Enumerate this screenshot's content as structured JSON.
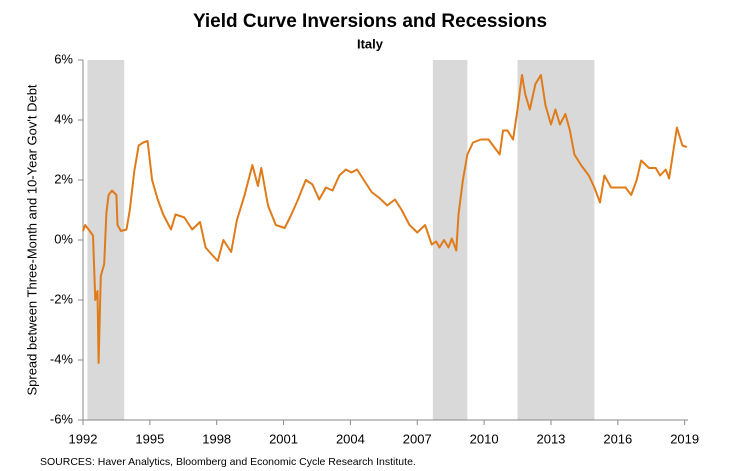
{
  "chart_data": {
    "type": "line",
    "title": "Yield Curve Inversions and Recessions",
    "subtitle": "Italy",
    "y_label": "Spread between Three-Month and 10-Year Gov't Debt",
    "source": "SOURCES: Haver Analytics, Bloomberg and Economic Cycle Research Institute.",
    "color": "#e07b1a",
    "recession_color": "#d9d9d9",
    "recessions": [
      [
        1992.2,
        1993.85
      ],
      [
        2007.7,
        2009.25
      ],
      [
        2011.5,
        2014.95
      ]
    ],
    "x": [
      1992.0,
      1992.1,
      1992.3,
      1992.45,
      1992.55,
      1992.65,
      1992.7,
      1992.8,
      1992.95,
      1993.05,
      1993.15,
      1993.3,
      1993.5,
      1993.55,
      1993.7,
      1993.95,
      1994.1,
      1994.3,
      1994.5,
      1994.7,
      1994.9,
      1995.1,
      1995.35,
      1995.6,
      1995.95,
      1996.15,
      1996.55,
      1996.9,
      1997.25,
      1997.5,
      1997.8,
      1998.05,
      1998.3,
      1998.65,
      1998.9,
      1999.25,
      1999.6,
      1999.85,
      2000.0,
      2000.3,
      2000.65,
      2001.05,
      2001.35,
      2001.65,
      2002.0,
      2002.3,
      2002.6,
      2002.9,
      2003.2,
      2003.5,
      2003.8,
      2004.05,
      2004.3,
      2004.6,
      2004.95,
      2005.3,
      2005.65,
      2006.0,
      2006.3,
      2006.65,
      2007.0,
      2007.35,
      2007.65,
      2007.85,
      2008.0,
      2008.2,
      2008.4,
      2008.55,
      2008.75,
      2008.85,
      2009.05,
      2009.25,
      2009.5,
      2009.85,
      2010.2,
      2010.5,
      2010.7,
      2010.85,
      2011.05,
      2011.3,
      2011.5,
      2011.7,
      2011.85,
      2012.05,
      2012.3,
      2012.55,
      2012.75,
      2013.0,
      2013.2,
      2013.4,
      2013.65,
      2013.85,
      2014.05,
      2014.35,
      2014.7,
      2014.95,
      2015.2,
      2015.4,
      2015.7,
      2016.05,
      2016.35,
      2016.6,
      2016.85,
      2017.05,
      2017.4,
      2017.7,
      2017.9,
      2018.15,
      2018.3,
      2018.5,
      2018.65,
      2018.9,
      2019.1
    ],
    "values": [
      0.3,
      0.5,
      0.3,
      0.15,
      -2.0,
      -1.7,
      -4.1,
      -1.2,
      -0.8,
      0.9,
      1.5,
      1.65,
      1.5,
      0.5,
      0.3,
      0.35,
      1.0,
      2.3,
      3.15,
      3.25,
      3.3,
      2.0,
      1.35,
      0.85,
      0.35,
      0.85,
      0.75,
      0.35,
      0.6,
      -0.25,
      -0.5,
      -0.7,
      0.0,
      -0.4,
      0.65,
      1.5,
      2.5,
      1.8,
      2.4,
      1.15,
      0.5,
      0.4,
      0.85,
      1.35,
      2.0,
      1.85,
      1.35,
      1.75,
      1.65,
      2.15,
      2.35,
      2.25,
      2.35,
      2.0,
      1.6,
      1.4,
      1.15,
      1.35,
      1.0,
      0.5,
      0.25,
      0.5,
      -0.15,
      -0.05,
      -0.25,
      0.0,
      -0.25,
      0.05,
      -0.35,
      0.85,
      2.0,
      2.85,
      3.25,
      3.35,
      3.35,
      3.05,
      2.85,
      3.65,
      3.65,
      3.35,
      4.35,
      5.5,
      4.85,
      4.35,
      5.2,
      5.5,
      4.5,
      3.85,
      4.35,
      3.85,
      4.2,
      3.65,
      2.85,
      2.5,
      2.15,
      1.75,
      1.25,
      2.15,
      1.75,
      1.75,
      1.75,
      1.5,
      2.0,
      2.65,
      2.4,
      2.4,
      2.15,
      2.35,
      2.05,
      3.0,
      3.75,
      3.15,
      3.1
    ],
    "xlim": [
      1992,
      2019.15
    ],
    "xticks": [
      1992,
      1995,
      1998,
      2001,
      2004,
      2007,
      2010,
      2013,
      2016,
      2019
    ],
    "ylim": [
      -6,
      6
    ],
    "yticks": [
      {
        "value": -6,
        "label": "-6%"
      },
      {
        "value": -4,
        "label": "-4%"
      },
      {
        "value": -2,
        "label": "-2%"
      },
      {
        "value": 0,
        "label": "0%"
      },
      {
        "value": 2,
        "label": "2%"
      },
      {
        "value": 4,
        "label": "4%"
      },
      {
        "value": 6,
        "label": "6%"
      }
    ]
  }
}
